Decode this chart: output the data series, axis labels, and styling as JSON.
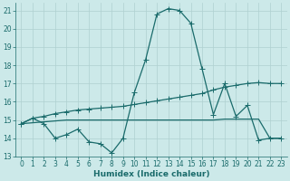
{
  "xlabel": "Humidex (Indice chaleur)",
  "background_color": "#cce9e9",
  "grid_color": "#afd0d0",
  "line_color": "#1a6b6b",
  "xlim": [
    -0.5,
    23.5
  ],
  "ylim": [
    13,
    21.4
  ],
  "yticks": [
    13,
    14,
    15,
    16,
    17,
    18,
    19,
    20,
    21
  ],
  "xticks": [
    0,
    1,
    2,
    3,
    4,
    5,
    6,
    7,
    8,
    9,
    10,
    11,
    12,
    13,
    14,
    15,
    16,
    17,
    18,
    19,
    20,
    21,
    22,
    23
  ],
  "line1_x": [
    0,
    1,
    2,
    3,
    4,
    5,
    6,
    7,
    8,
    9,
    10,
    11,
    12,
    13,
    14,
    15,
    16,
    17,
    18,
    19,
    20,
    21,
    22,
    23
  ],
  "line1_y": [
    14.8,
    15.1,
    14.8,
    14.0,
    14.2,
    14.5,
    13.8,
    13.7,
    13.2,
    14.0,
    16.5,
    18.3,
    20.8,
    21.1,
    21.0,
    20.3,
    17.8,
    15.3,
    17.0,
    15.2,
    15.8,
    13.9,
    14.0,
    14.0
  ],
  "line2_x": [
    0,
    1,
    2,
    3,
    4,
    5,
    6,
    7,
    8,
    9,
    10,
    11,
    12,
    13,
    14,
    15,
    16,
    17,
    18,
    19,
    20,
    21,
    22,
    23
  ],
  "line2_y": [
    14.8,
    15.1,
    15.2,
    15.35,
    15.45,
    15.55,
    15.6,
    15.65,
    15.7,
    15.75,
    15.85,
    15.95,
    16.05,
    16.15,
    16.25,
    16.35,
    16.45,
    16.65,
    16.8,
    16.9,
    17.0,
    17.05,
    17.0,
    17.0
  ],
  "line3_x": [
    0,
    1,
    2,
    3,
    4,
    5,
    6,
    7,
    8,
    9,
    10,
    11,
    12,
    13,
    14,
    15,
    16,
    17,
    18,
    19,
    20,
    21,
    22,
    23
  ],
  "line3_y": [
    14.8,
    14.85,
    14.9,
    14.95,
    15.0,
    15.0,
    15.0,
    15.0,
    15.0,
    15.0,
    15.0,
    15.0,
    15.0,
    15.0,
    15.0,
    15.0,
    15.0,
    15.0,
    15.05,
    15.05,
    15.05,
    15.05,
    14.0,
    14.0
  ],
  "line_width": 0.9,
  "marker_size": 3,
  "font_size": 5.5,
  "xlabel_fontsize": 6.5
}
